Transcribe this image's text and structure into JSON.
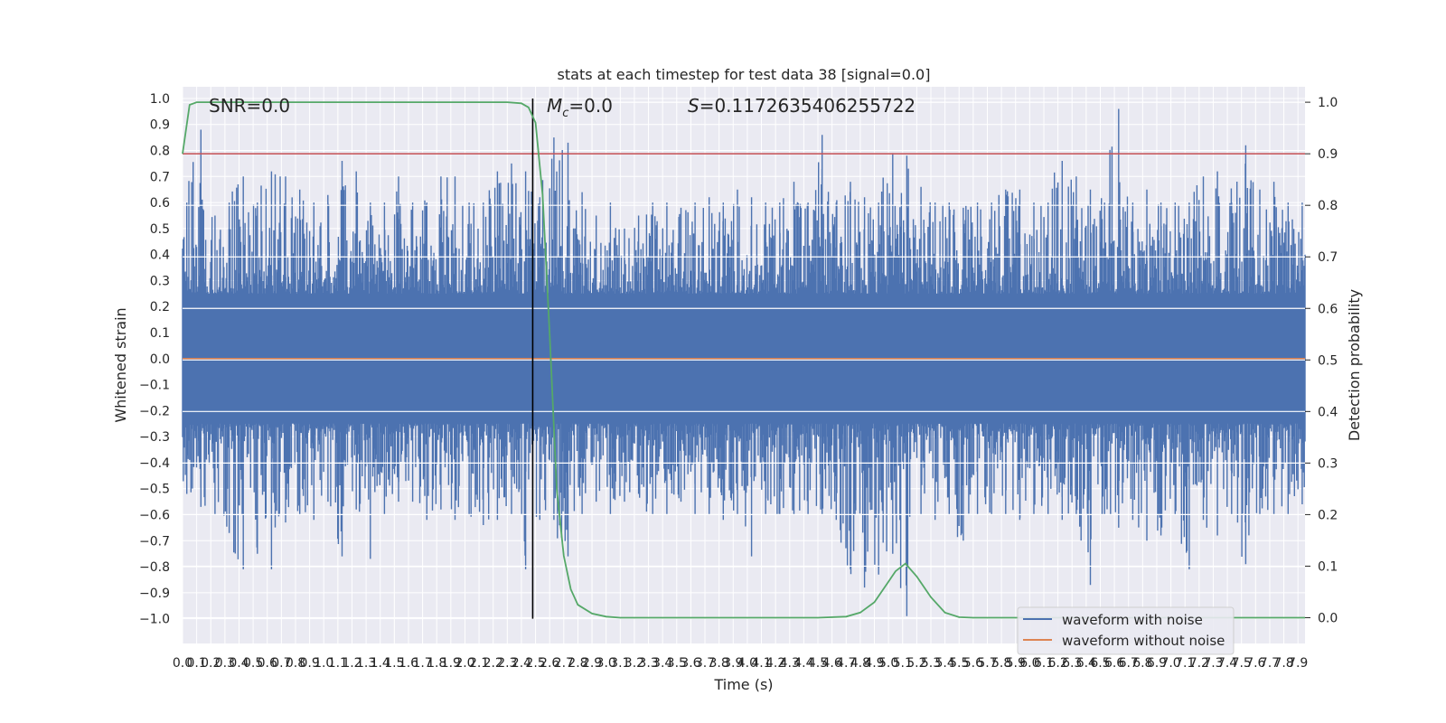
{
  "chart_data": {
    "type": "line",
    "title": "stats at each timestep for test data 38 [signal=0.0]",
    "xlabel": "Time (s)",
    "ylabel_left": "Whitened strain",
    "ylabel_right": "Detection probability",
    "annotations": {
      "snr": "SNR=0.0",
      "mc_label": "M",
      "mc_sub": "c",
      "mc_value": "=0.0",
      "s_label": "S",
      "s_value": "=0.1172635406255722"
    },
    "xlim": [
      0.0,
      7.95
    ],
    "ylim_left": [
      -1.095,
      1.045
    ],
    "ylim_right": [
      -0.05,
      1.03
    ],
    "x_ticks": [
      0.0,
      0.1,
      0.2,
      0.3,
      0.4,
      0.5,
      0.6,
      0.7,
      0.8,
      0.9,
      1.0,
      1.1,
      1.2,
      1.3,
      1.4,
      1.5,
      1.6,
      1.7,
      1.8,
      1.9,
      2.0,
      2.1,
      2.2,
      2.3,
      2.4,
      2.5,
      2.6,
      2.7,
      2.8,
      2.9,
      3.0,
      3.1,
      3.2,
      3.3,
      3.4,
      3.5,
      3.6,
      3.7,
      3.8,
      3.9,
      4.0,
      4.1,
      4.2,
      4.3,
      4.4,
      4.5,
      4.6,
      4.7,
      4.8,
      4.9,
      5.0,
      5.1,
      5.2,
      5.3,
      5.4,
      5.5,
      5.6,
      5.7,
      5.8,
      5.9,
      6.0,
      6.1,
      6.2,
      6.3,
      6.4,
      6.5,
      6.6,
      6.7,
      6.8,
      6.9,
      7.0,
      7.1,
      7.2,
      7.3,
      7.4,
      7.5,
      7.6,
      7.7,
      7.8,
      7.9
    ],
    "y_ticks_left": [
      -1.0,
      -0.9,
      -0.8,
      -0.7,
      -0.6,
      -0.5,
      -0.4,
      -0.3,
      -0.2,
      -0.1,
      0.0,
      0.1,
      0.2,
      0.3,
      0.4,
      0.5,
      0.6,
      0.7,
      0.8,
      0.9,
      1.0
    ],
    "y_ticks_right": [
      0.0,
      0.1,
      0.2,
      0.3,
      0.4,
      0.5,
      0.6,
      0.7,
      0.8,
      0.9,
      1.0
    ],
    "threshold": {
      "value": 0.9,
      "axis": "right",
      "color": "#c44e52"
    },
    "event_marker": {
      "time": 2.48,
      "y_range": [
        -1.0,
        1.0
      ],
      "color": "#000000"
    },
    "series": [
      {
        "name": "waveform with noise",
        "color": "#4c72b0",
        "description": "dense noise, mostly within ±0.4 with spikes",
        "envelope": {
          "x": [
            0.0,
            0.1,
            0.2,
            0.3,
            0.4,
            0.5,
            0.6,
            0.7,
            0.8,
            0.9,
            1.0,
            1.1,
            1.2,
            1.3,
            1.4,
            1.5,
            1.6,
            1.7,
            1.8,
            1.9,
            2.0,
            2.1,
            2.2,
            2.3,
            2.4,
            2.5,
            2.6,
            2.7,
            2.8,
            2.9,
            3.0,
            3.1,
            3.2,
            3.3,
            3.4,
            3.5,
            3.6,
            3.7,
            3.8,
            3.9,
            4.0,
            4.1,
            4.2,
            4.3,
            4.4,
            4.5,
            4.6,
            4.7,
            4.8,
            4.9,
            5.0,
            5.1,
            5.2,
            5.3,
            5.4,
            5.5,
            5.6,
            5.7,
            5.8,
            5.9,
            6.0,
            6.1,
            6.2,
            6.3,
            6.4,
            6.5,
            6.6,
            6.7,
            6.8,
            6.9,
            7.0,
            7.1,
            7.2,
            7.3,
            7.4,
            7.5,
            7.6,
            7.7,
            7.8,
            7.9
          ],
          "max": [
            0.6,
            0.88,
            0.55,
            0.6,
            0.7,
            0.6,
            0.72,
            0.7,
            0.65,
            0.6,
            0.6,
            0.76,
            0.72,
            0.6,
            0.6,
            0.7,
            0.6,
            0.6,
            0.7,
            0.7,
            0.6,
            0.6,
            0.72,
            0.75,
            0.72,
            0.62,
            0.85,
            0.83,
            0.64,
            0.55,
            0.6,
            0.5,
            0.55,
            0.6,
            0.6,
            0.58,
            0.6,
            0.62,
            0.6,
            0.65,
            0.62,
            0.6,
            0.6,
            0.68,
            0.6,
            0.86,
            0.6,
            0.68,
            0.62,
            0.6,
            0.79,
            0.78,
            0.66,
            0.6,
            0.6,
            0.58,
            0.6,
            0.6,
            0.65,
            0.65,
            0.6,
            0.6,
            0.76,
            0.7,
            0.65,
            0.6,
            0.96,
            0.6,
            0.65,
            0.6,
            0.6,
            0.6,
            0.7,
            0.72,
            0.6,
            0.82,
            0.65,
            0.68,
            0.6,
            0.6
          ],
          "min": [
            -0.52,
            -0.57,
            -0.6,
            -0.67,
            -0.81,
            -0.75,
            -0.81,
            -0.63,
            -0.6,
            -0.62,
            -0.55,
            -0.76,
            -0.58,
            -0.77,
            -0.6,
            -0.55,
            -0.55,
            -0.62,
            -0.58,
            -0.62,
            -0.6,
            -0.64,
            -0.62,
            -0.6,
            -0.81,
            -0.62,
            -0.62,
            -0.76,
            -0.6,
            -0.55,
            -0.6,
            -0.55,
            -0.52,
            -0.6,
            -0.6,
            -0.55,
            -0.6,
            -0.6,
            -0.62,
            -0.6,
            -0.76,
            -0.6,
            -0.6,
            -0.6,
            -0.6,
            -0.6,
            -0.62,
            -0.81,
            -0.88,
            -0.83,
            -0.75,
            -0.99,
            -0.6,
            -0.62,
            -0.6,
            -0.7,
            -0.6,
            -0.6,
            -0.6,
            -0.62,
            -0.6,
            -0.6,
            -0.62,
            -0.6,
            -0.87,
            -0.6,
            -0.65,
            -0.62,
            -0.7,
            -0.68,
            -0.6,
            -0.81,
            -0.62,
            -0.68,
            -0.6,
            -0.79,
            -0.6,
            -0.6,
            -0.6,
            -0.56
          ]
        }
      },
      {
        "name": "waveform without noise",
        "color": "#dd8452",
        "x": [
          0.0,
          7.95
        ],
        "y": [
          0.0,
          0.0
        ]
      },
      {
        "name": "detection probability",
        "color": "#55a868",
        "axis": "right",
        "x": [
          0.0,
          0.05,
          0.1,
          0.2,
          0.5,
          1.0,
          2.0,
          2.3,
          2.4,
          2.45,
          2.5,
          2.55,
          2.6,
          2.65,
          2.7,
          2.75,
          2.8,
          2.9,
          3.0,
          3.1,
          3.2,
          4.0,
          4.5,
          4.7,
          4.8,
          4.9,
          5.0,
          5.05,
          5.12,
          5.2,
          5.3,
          5.4,
          5.5,
          5.6,
          7.95
        ],
        "y": [
          0.9,
          0.995,
          1.0,
          1.0,
          1.0,
          1.0,
          1.0,
          1.0,
          0.998,
          0.99,
          0.96,
          0.82,
          0.55,
          0.25,
          0.12,
          0.055,
          0.025,
          0.008,
          0.002,
          0.0,
          0.0,
          0.0,
          0.0,
          0.002,
          0.01,
          0.03,
          0.07,
          0.09,
          0.105,
          0.08,
          0.04,
          0.01,
          0.001,
          0.0,
          0.0
        ]
      }
    ],
    "legend": {
      "position": "lower-right",
      "entries": [
        {
          "label": "waveform with noise",
          "color": "#4c72b0"
        },
        {
          "label": "waveform without noise",
          "color": "#dd8452"
        }
      ]
    }
  }
}
